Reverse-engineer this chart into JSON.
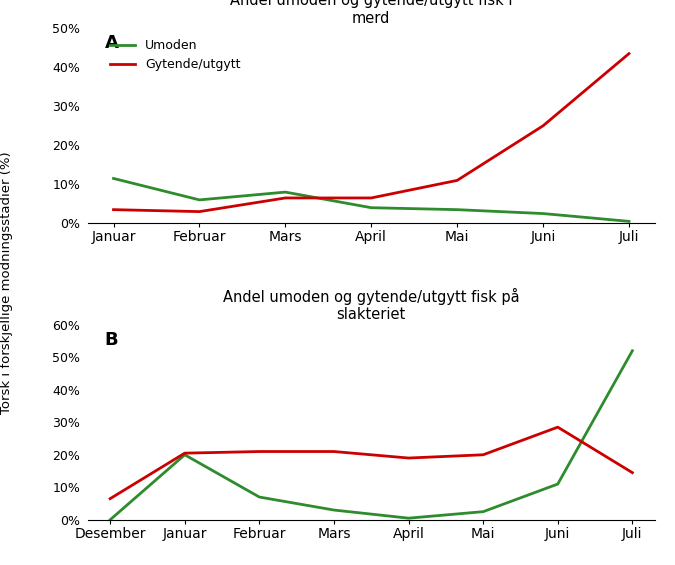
{
  "panel_A": {
    "title": "Andel umoden og gytende/utgytt fisk i\nmerd",
    "label": "A",
    "x_labels": [
      "Januar",
      "Februar",
      "Mars",
      "April",
      "Mai",
      "Juni",
      "Juli"
    ],
    "umoden": [
      0.115,
      0.06,
      0.08,
      0.04,
      0.035,
      0.025,
      0.005
    ],
    "gytende": [
      0.035,
      0.03,
      0.065,
      0.065,
      0.11,
      0.25,
      0.435
    ],
    "ylim": [
      0,
      0.5
    ],
    "yticks": [
      0,
      0.1,
      0.2,
      0.3,
      0.4,
      0.5
    ]
  },
  "panel_B": {
    "title": "Andel umoden og gytende/utgytt fisk på\nslakteriet",
    "label": "B",
    "x_labels": [
      "Desember",
      "Januar",
      "Februar",
      "Mars",
      "April",
      "Mai",
      "Juni",
      "Juli"
    ],
    "umoden": [
      0.0,
      0.2,
      0.07,
      0.03,
      0.005,
      0.025,
      0.11,
      0.52
    ],
    "gytende": [
      0.065,
      0.205,
      0.21,
      0.21,
      0.19,
      0.2,
      0.285,
      0.145
    ],
    "ylim": [
      0,
      0.6
    ],
    "yticks": [
      0,
      0.1,
      0.2,
      0.3,
      0.4,
      0.5,
      0.6
    ]
  },
  "color_umoden": "#2e8b2e",
  "color_gytende": "#cc0000",
  "ylabel": "Torsk i forskjellige modningsstadier (%)",
  "legend_umoden": "Umoden",
  "legend_gytende": "Gytende/utgytt",
  "linewidth": 2.0,
  "background_color": "#ffffff"
}
